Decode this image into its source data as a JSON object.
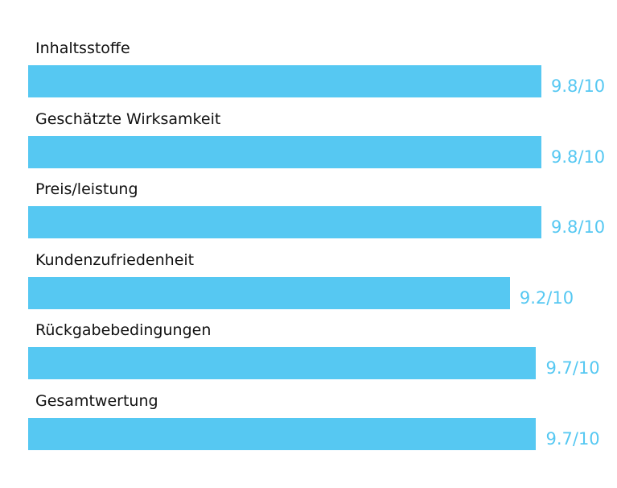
{
  "colors": {
    "bar": "#56c8f2",
    "score": "#56c8f2",
    "label": "#111111"
  },
  "chart_data": {
    "type": "bar",
    "orientation": "horizontal",
    "max": 10,
    "categories": [
      "Inhaltsstoffe",
      "Geschätzte Wirksamkeit",
      "Preis/leistung",
      "Kundenzufriedenheit",
      "Rückgabebedingungen",
      "Gesamtwertung"
    ],
    "values": [
      9.8,
      9.8,
      9.8,
      9.2,
      9.7,
      9.7
    ],
    "value_labels": [
      "9.8/10",
      "9.8/10",
      "9.8/10",
      "9.2/10",
      "9.7/10",
      "9.7/10"
    ],
    "grid": false,
    "legend": "none"
  }
}
